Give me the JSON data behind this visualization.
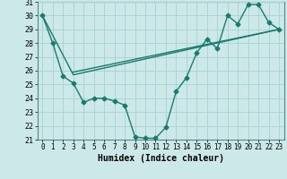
{
  "title": "",
  "xlabel": "Humidex (Indice chaleur)",
  "xlim": [
    -0.5,
    23.5
  ],
  "ylim": [
    21,
    31
  ],
  "xticks": [
    0,
    1,
    2,
    3,
    4,
    5,
    6,
    7,
    8,
    9,
    10,
    11,
    12,
    13,
    14,
    15,
    16,
    17,
    18,
    19,
    20,
    21,
    22,
    23
  ],
  "yticks": [
    21,
    22,
    23,
    24,
    25,
    26,
    27,
    28,
    29,
    30,
    31
  ],
  "bg_color": "#cce8e8",
  "grid_color": "#aad4d4",
  "line_color": "#1a7a6e",
  "curve1_x": [
    0,
    1,
    2,
    3,
    4,
    5,
    6,
    7,
    8,
    9,
    10,
    11,
    12,
    13,
    14,
    15,
    16,
    17,
    18,
    19,
    20,
    21,
    22,
    23
  ],
  "curve1_y": [
    30.0,
    28.0,
    25.6,
    25.1,
    23.7,
    24.0,
    24.0,
    23.8,
    23.5,
    21.2,
    21.1,
    21.1,
    21.9,
    24.5,
    25.5,
    27.3,
    28.3,
    27.6,
    30.0,
    29.4,
    30.8,
    30.8,
    29.5,
    29.0
  ],
  "line2_x": [
    0,
    3,
    23
  ],
  "line2_y": [
    30.0,
    25.7,
    29.0
  ],
  "line3_x": [
    3,
    23
  ],
  "line3_y": [
    25.9,
    29.0
  ],
  "marker_size": 2.5,
  "line_width": 1.0,
  "fontsize_tick": 5.5,
  "fontsize_xlabel": 7.0
}
